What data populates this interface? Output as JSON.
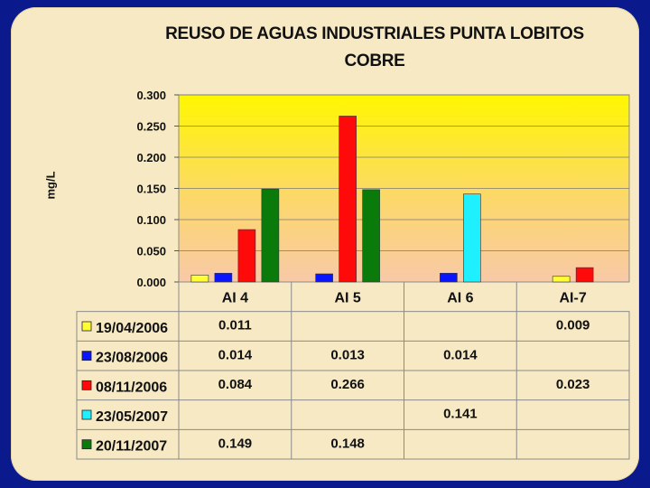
{
  "chart_data": {
    "type": "bar",
    "title": "REUSO DE AGUAS INDUSTRIALES PUNTA LOBITOS",
    "subtitle": "COBRE",
    "ylabel": "mg/L",
    "ylim": [
      0,
      0.3
    ],
    "yticks": [
      "0.000",
      "0.050",
      "0.100",
      "0.150",
      "0.200",
      "0.250",
      "0.300"
    ],
    "categories": [
      "AI 4",
      "AI 5",
      "AI 6",
      "AI-7"
    ],
    "series": [
      {
        "name": "19/04/2006",
        "color": "#ffff33",
        "values": [
          0.011,
          null,
          null,
          0.009
        ],
        "labels": [
          "0.011",
          "",
          "",
          "0.009"
        ]
      },
      {
        "name": "23/08/2006",
        "color": "#0a14ff",
        "values": [
          0.014,
          0.013,
          0.014,
          null
        ],
        "labels": [
          "0.014",
          "0.013",
          "0.014",
          ""
        ]
      },
      {
        "name": "08/11/2006",
        "color": "#ff0a0a",
        "values": [
          0.084,
          0.266,
          null,
          0.023
        ],
        "labels": [
          "0.084",
          "0.266",
          "",
          "0.023"
        ]
      },
      {
        "name": "23/05/2007",
        "color": "#1ef0ff",
        "values": [
          null,
          null,
          0.141,
          null
        ],
        "labels": [
          "",
          "",
          "0.141",
          ""
        ]
      },
      {
        "name": "20/11/2007",
        "color": "#0a7a0a",
        "values": [
          0.149,
          0.148,
          null,
          null
        ],
        "labels": [
          "0.149",
          "0.148",
          "",
          ""
        ]
      }
    ],
    "grid": true,
    "legend": "data-table"
  }
}
